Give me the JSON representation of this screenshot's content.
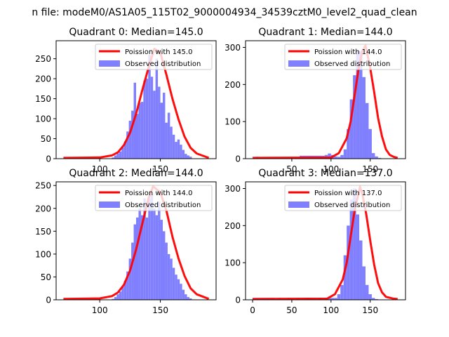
{
  "figure": {
    "suptitle": "n file: modeM0/AS1A05_115T02_9000004934_34539cztM0_level2_quad_clean",
    "colors": {
      "poisson": "#ff0000",
      "observed": "#8080ff",
      "axis": "#000000",
      "background": "#ffffff"
    }
  },
  "chart_data": [
    {
      "type": "bar",
      "title": "Quadrant 0: Median=145.0",
      "xlim": [
        64,
        196
      ],
      "ylim": [
        0,
        295
      ],
      "xticks": [
        100,
        150
      ],
      "yticks": [
        0,
        50,
        100,
        150,
        200,
        250
      ],
      "xtick_labels_visible": true,
      "legend": {
        "location": "top-right",
        "entries": [
          "Poission with 145.0",
          "Observed distribution"
        ]
      },
      "observed": {
        "name": "Observed distribution",
        "bin_start": 110,
        "bin_width": 2,
        "counts": [
          3,
          8,
          13,
          18,
          28,
          43,
          68,
          95,
          120,
          190,
          112,
          140,
          142,
          195,
          200,
          260,
          205,
          170,
          250,
          180,
          140,
          165,
          90,
          115,
          80,
          60,
          42,
          48,
          35,
          22,
          12,
          8,
          5
        ]
      },
      "poisson": {
        "name": "Poission with 145.0",
        "mean": 145,
        "x": [
          70,
          100,
          110,
          115,
          120,
          125,
          130,
          135,
          140,
          145,
          150,
          155,
          160,
          165,
          170,
          175,
          180,
          190
        ],
        "y": [
          2,
          3,
          8,
          16,
          34,
          65,
          112,
          170,
          225,
          275,
          265,
          210,
          150,
          98,
          55,
          27,
          13,
          2
        ]
      }
    },
    {
      "type": "bar",
      "title": "Quadrant 1: Median=144.0",
      "xlim": [
        -9,
        195
      ],
      "ylim": [
        0,
        318
      ],
      "xticks": [
        50,
        100,
        150
      ],
      "yticks": [
        0,
        100,
        200,
        300
      ],
      "xtick_labels_visible": true,
      "legend": {
        "location": "top-right",
        "entries": [
          "Poission with 144.0",
          "Observed distribution"
        ]
      },
      "observed": {
        "name": "Observed distribution",
        "bin_start": 0,
        "bin_width": 4,
        "counts": [
          0,
          5,
          0,
          0,
          0,
          0,
          0,
          0,
          0,
          0,
          0,
          0,
          0,
          0,
          0,
          8,
          8,
          8,
          8,
          8,
          8,
          8,
          8,
          10,
          14,
          10,
          6,
          5,
          10,
          25,
          80,
          160,
          225,
          290,
          290,
          220,
          150,
          80,
          15,
          6,
          2
        ]
      },
      "poisson": {
        "name": "Poission with 144.0",
        "mean": 144,
        "x": [
          0,
          100,
          110,
          120,
          125,
          130,
          135,
          140,
          144,
          150,
          155,
          160,
          165,
          170,
          175,
          180,
          185
        ],
        "y": [
          2,
          3,
          15,
          55,
          100,
          170,
          240,
          290,
          305,
          245,
          180,
          110,
          60,
          25,
          10,
          5,
          2
        ]
      }
    },
    {
      "type": "bar",
      "title": "Quadrant 2: Median=144.0",
      "xlim": [
        64,
        196
      ],
      "ylim": [
        0,
        258
      ],
      "xticks": [
        100,
        150
      ],
      "yticks": [
        0,
        50,
        100,
        150,
        200,
        250
      ],
      "xtick_labels_visible": true,
      "legend": {
        "location": "top-right",
        "entries": [
          "Poission with 144.0",
          "Observed distribution"
        ]
      },
      "observed": {
        "name": "Observed distribution",
        "bin_start": 110,
        "bin_width": 2,
        "counts": [
          2,
          6,
          12,
          18,
          28,
          42,
          62,
          90,
          125,
          165,
          180,
          200,
          185,
          222,
          180,
          222,
          230,
          200,
          185,
          215,
          175,
          150,
          125,
          100,
          90,
          70,
          55,
          45,
          35,
          22,
          12,
          6,
          3
        ]
      },
      "poisson": {
        "name": "Poission with 144.0",
        "mean": 144,
        "x": [
          70,
          100,
          110,
          115,
          120,
          125,
          130,
          135,
          140,
          144,
          150,
          155,
          160,
          165,
          170,
          175,
          180,
          190
        ],
        "y": [
          2,
          3,
          8,
          16,
          33,
          64,
          110,
          165,
          220,
          248,
          235,
          195,
          138,
          90,
          52,
          25,
          12,
          2
        ]
      }
    },
    {
      "type": "bar",
      "title": "Quadrant 3: Median=137.0",
      "xlim": [
        -9,
        195
      ],
      "ylim": [
        0,
        318
      ],
      "xticks": [
        0,
        50,
        100,
        150
      ],
      "yticks": [
        0,
        100,
        200,
        300
      ],
      "xtick_labels_visible": true,
      "legend": {
        "location": "top-right",
        "entries": [
          "Poission with 137.0",
          "Observed distribution"
        ]
      },
      "observed": {
        "name": "Observed distribution",
        "bin_start": 0,
        "bin_width": 4,
        "counts": [
          5,
          5,
          5,
          5,
          5,
          5,
          5,
          0,
          5,
          0,
          0,
          5,
          0,
          0,
          5,
          0,
          0,
          5,
          5,
          0,
          0,
          5,
          0,
          5,
          5,
          5,
          5,
          15,
          40,
          120,
          200,
          270,
          300,
          230,
          160,
          90,
          40,
          15,
          5,
          2
        ]
      },
      "poisson": {
        "name": "Poission with 137.0",
        "mean": 137,
        "x": [
          0,
          95,
          105,
          115,
          120,
          125,
          130,
          137,
          140,
          145,
          150,
          155,
          160,
          165,
          170,
          180,
          185
        ],
        "y": [
          2,
          3,
          15,
          55,
          100,
          170,
          240,
          305,
          285,
          230,
          160,
          95,
          45,
          20,
          8,
          3,
          2
        ]
      }
    }
  ]
}
